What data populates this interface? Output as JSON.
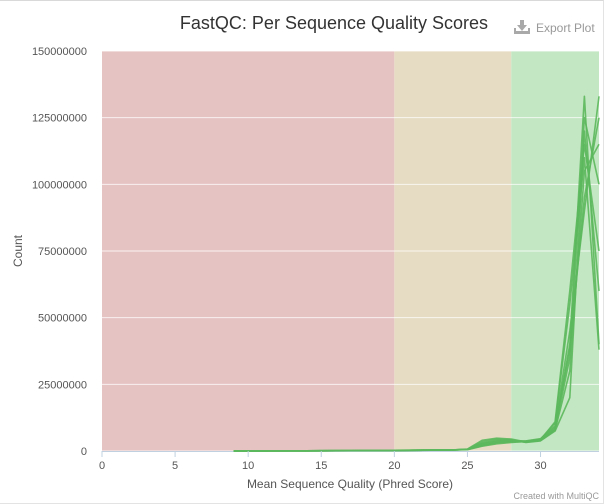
{
  "toolbar": {
    "export_label": "Export Plot",
    "export_icon": "download-icon"
  },
  "credit": "Created with MultiQC",
  "chart_data": {
    "type": "line",
    "title": "FastQC: Per Sequence Quality Scores",
    "xlabel": "Mean Sequence Quality (Phred Score)",
    "ylabel": "Count",
    "xlim": [
      0,
      34
    ],
    "ylim": [
      0,
      150000000
    ],
    "xticks": [
      "0",
      "5",
      "10",
      "15",
      "20",
      "25",
      "30"
    ],
    "yticks": [
      "0",
      "25000000",
      "50000000",
      "75000000",
      "100000000",
      "125000000",
      "150000000"
    ],
    "grid": true,
    "legend": "none",
    "bands": [
      {
        "from": 0,
        "to": 20,
        "color": "#e6c3c3"
      },
      {
        "from": 20,
        "to": 28,
        "color": "#e6dcc3"
      },
      {
        "from": 28,
        "to": 34,
        "color": "#c3e6c3"
      }
    ],
    "line_color": "#5cb85c",
    "x": [
      9,
      10,
      11,
      12,
      13,
      14,
      15,
      16,
      17,
      18,
      19,
      20,
      21,
      22,
      23,
      24,
      25,
      26,
      27,
      28,
      29,
      30,
      31,
      32,
      33,
      34
    ],
    "series": [
      {
        "values": [
          50000,
          60000,
          60000,
          70000,
          80000,
          90000,
          100000,
          110000,
          130000,
          160000,
          200000,
          250000,
          290000,
          320000,
          360000,
          420000,
          650000,
          3500000,
          4500000,
          4200000,
          3200000,
          3800000,
          7500000,
          20000000,
          120000000,
          60000000
        ]
      },
      {
        "values": [
          40000,
          50000,
          50000,
          60000,
          70000,
          80000,
          90000,
          100000,
          120000,
          150000,
          180000,
          220000,
          260000,
          290000,
          330000,
          390000,
          600000,
          2800000,
          3800000,
          3900000,
          3500000,
          4200000,
          8500000,
          40000000,
          133000000,
          40000000
        ]
      },
      {
        "values": [
          45000,
          55000,
          55000,
          65000,
          75000,
          85000,
          95000,
          105000,
          125000,
          155000,
          190000,
          230000,
          270000,
          300000,
          340000,
          400000,
          550000,
          2200000,
          3200000,
          3600000,
          3800000,
          4600000,
          9500000,
          45000000,
          90000000,
          133000000
        ]
      },
      {
        "values": [
          40000,
          45000,
          50000,
          55000,
          60000,
          70000,
          80000,
          90000,
          110000,
          140000,
          170000,
          210000,
          250000,
          280000,
          320000,
          380000,
          500000,
          1800000,
          2700000,
          3200000,
          3600000,
          4400000,
          10500000,
          55000000,
          110000000,
          38000000
        ]
      },
      {
        "values": [
          50000,
          55000,
          60000,
          65000,
          75000,
          85000,
          95000,
          110000,
          130000,
          160000,
          195000,
          240000,
          280000,
          310000,
          350000,
          410000,
          700000,
          4000000,
          4800000,
          4500000,
          3400000,
          4000000,
          8000000,
          35000000,
          125000000,
          100000000
        ]
      },
      {
        "values": [
          45000,
          50000,
          55000,
          60000,
          70000,
          80000,
          90000,
          100000,
          120000,
          150000,
          185000,
          225000,
          265000,
          295000,
          335000,
          395000,
          580000,
          2500000,
          3500000,
          3800000,
          3700000,
          4300000,
          9000000,
          38000000,
          95000000,
          125000000
        ]
      },
      {
        "values": [
          40000,
          45000,
          50000,
          55000,
          65000,
          75000,
          85000,
          95000,
          115000,
          145000,
          175000,
          215000,
          255000,
          285000,
          325000,
          385000,
          520000,
          2000000,
          3000000,
          3400000,
          3500000,
          4200000,
          11000000,
          60000000,
          115000000,
          75000000
        ]
      },
      {
        "values": [
          50000,
          60000,
          60000,
          70000,
          80000,
          90000,
          100000,
          110000,
          130000,
          160000,
          200000,
          250000,
          290000,
          320000,
          360000,
          420000,
          620000,
          3000000,
          4100000,
          4000000,
          3300000,
          3900000,
          7800000,
          30000000,
          105000000,
          115000000
        ]
      }
    ]
  }
}
